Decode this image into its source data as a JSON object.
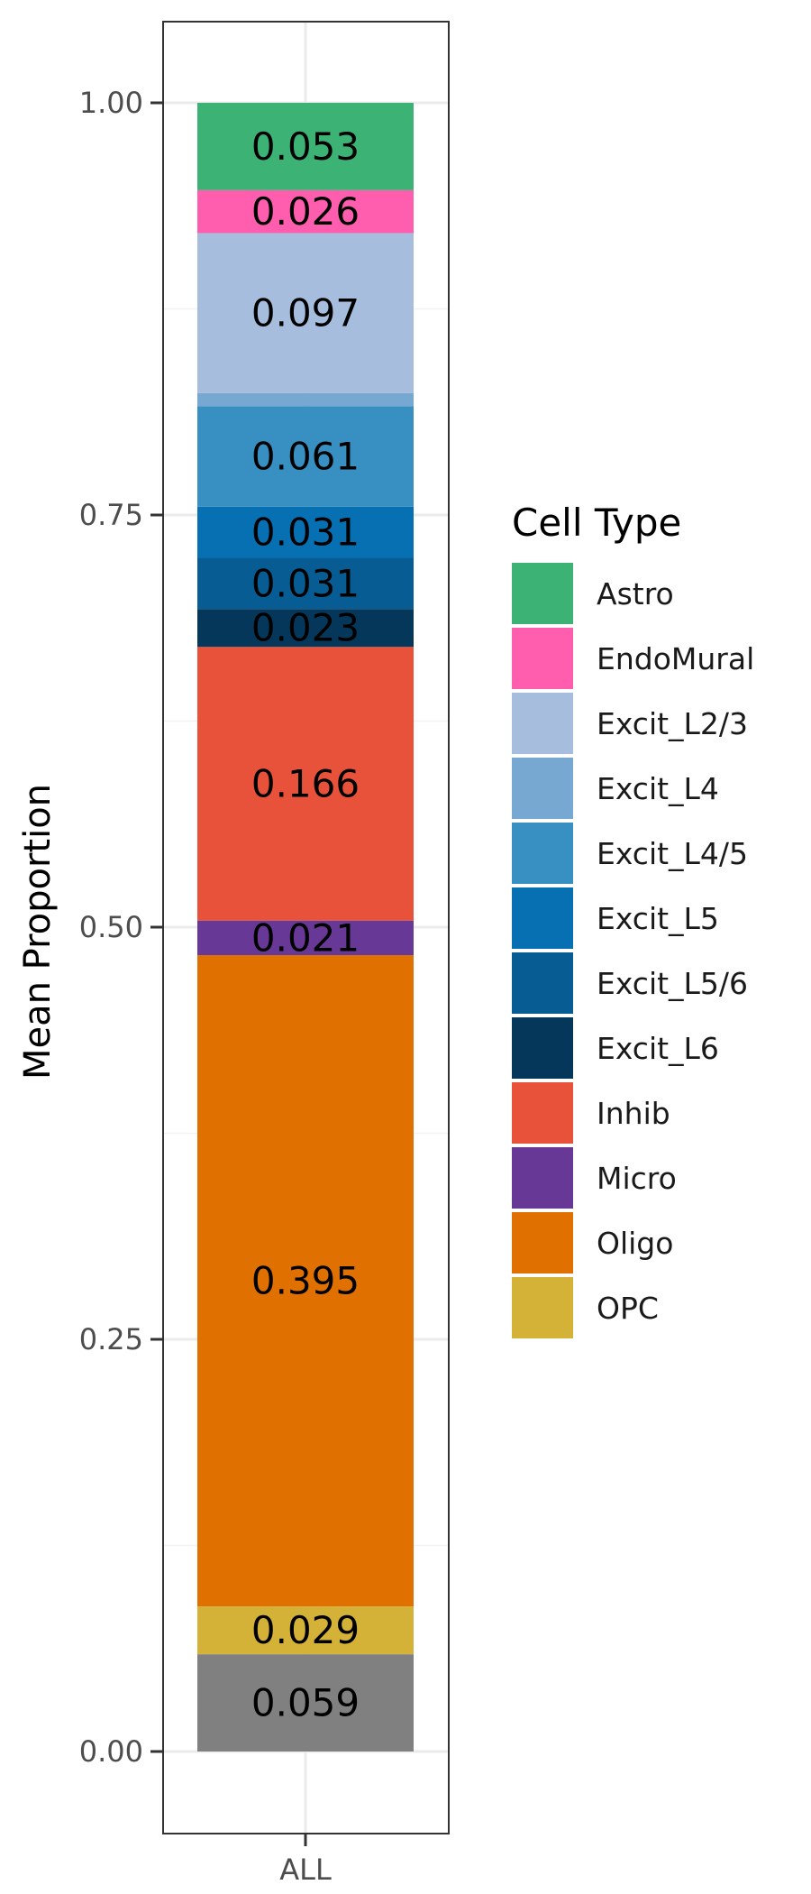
{
  "chart_data": {
    "type": "bar",
    "stacked": true,
    "categories": [
      "ALL"
    ],
    "xlabel": "",
    "ylabel": "Mean Proportion",
    "ylim": [
      0,
      1
    ],
    "yticks": [
      "0.00",
      "0.25",
      "0.50",
      "0.75",
      "1.00"
    ],
    "grid": true,
    "legend": {
      "title": "Cell Type",
      "placement": "right"
    },
    "segments": [
      {
        "label": "0.059",
        "value": 0.059,
        "color": "#808080"
      },
      {
        "label": "0.029",
        "value": 0.029,
        "color": "#D4B237"
      },
      {
        "name": "Oligo",
        "label": "0.395",
        "value": 0.395,
        "color": "#E07000"
      },
      {
        "name": "Micro",
        "label": "0.021",
        "value": 0.021,
        "color": "#673895"
      },
      {
        "name": "Inhib",
        "label": "0.166",
        "value": 0.166,
        "color": "#E8523A"
      },
      {
        "name": "Excit_L6",
        "label": "0.023",
        "value": 0.023,
        "color": "#05375A"
      },
      {
        "name": "Excit_L5/6",
        "label": "0.031",
        "value": 0.031,
        "color": "#085C94"
      },
      {
        "name": "Excit_L5",
        "label": "0.031",
        "value": 0.031,
        "color": "#0670B3"
      },
      {
        "name": "Excit_L4/5",
        "label": "0.061",
        "value": 0.061,
        "color": "#3890C2"
      },
      {
        "name": "Excit_L4",
        "label": "",
        "value": 0.008,
        "color": "#76A8D2"
      },
      {
        "name": "Excit_L2/3",
        "label": "0.097",
        "value": 0.097,
        "color": "#A6BDDD"
      },
      {
        "name": "EndoMural",
        "label": "0.026",
        "value": 0.026,
        "color": "#FF5DAE"
      },
      {
        "name": "Astro",
        "label": "0.053",
        "value": 0.053,
        "color": "#3CB274"
      }
    ],
    "legend_entries": [
      {
        "name": "Astro",
        "color": "#3CB274"
      },
      {
        "name": "EndoMural",
        "color": "#FF5DAE"
      },
      {
        "name": "Excit_L2/3",
        "color": "#A6BDDD"
      },
      {
        "name": "Excit_L4",
        "color": "#76A8D2"
      },
      {
        "name": "Excit_L4/5",
        "color": "#3890C2"
      },
      {
        "name": "Excit_L5",
        "color": "#0670B3"
      },
      {
        "name": "Excit_L5/6",
        "color": "#085C94"
      },
      {
        "name": "Excit_L6",
        "color": "#05375A"
      },
      {
        "name": "Inhib",
        "color": "#E8523A"
      },
      {
        "name": "Micro",
        "color": "#673895"
      },
      {
        "name": "Oligo",
        "color": "#E07000"
      },
      {
        "name": "OPC",
        "color": "#D4B237"
      }
    ]
  }
}
